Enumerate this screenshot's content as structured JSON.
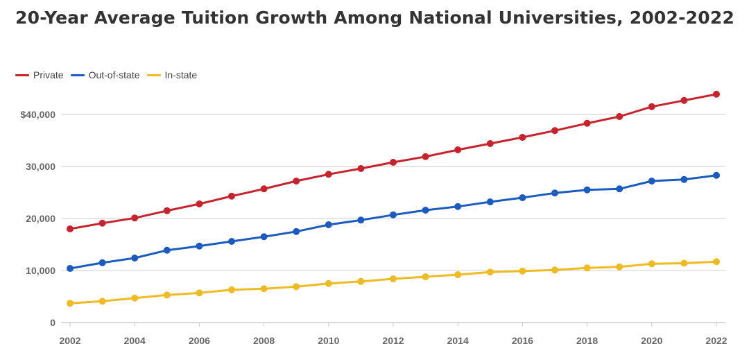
{
  "chart_data": {
    "type": "line",
    "title": "20-Year Average Tuition Growth Among National Universities, 2002-2022",
    "xlabel": "",
    "ylabel": "",
    "x": [
      2002,
      2003,
      2004,
      2005,
      2006,
      2007,
      2008,
      2009,
      2010,
      2011,
      2012,
      2013,
      2014,
      2015,
      2016,
      2017,
      2018,
      2019,
      2020,
      2021,
      2022
    ],
    "x_ticks": [
      "2002",
      "2004",
      "2006",
      "2008",
      "2010",
      "2012",
      "2014",
      "2016",
      "2018",
      "2020",
      "2022"
    ],
    "y_ticks": [
      "0",
      "10,000",
      "20,000",
      "30,000",
      "$40,000"
    ],
    "ylim": [
      0,
      45000
    ],
    "grid": true,
    "legend_position": "top-left",
    "series": [
      {
        "name": "Private",
        "color": "#c8232c",
        "values": [
          18000,
          19100,
          20100,
          21500,
          22800,
          24300,
          25700,
          27200,
          28500,
          29600,
          30800,
          31900,
          33200,
          34400,
          35600,
          36900,
          38300,
          39600,
          41500,
          42700,
          43900
        ]
      },
      {
        "name": "Out-of-state",
        "color": "#1a5bbf",
        "values": [
          10400,
          11500,
          12400,
          13900,
          14700,
          15600,
          16500,
          17500,
          18800,
          19700,
          20700,
          21600,
          22300,
          23200,
          24000,
          24900,
          25500,
          25700,
          27200,
          27500,
          28300
        ]
      },
      {
        "name": "In-state",
        "color": "#f0bb22",
        "values": [
          3700,
          4100,
          4700,
          5300,
          5700,
          6300,
          6500,
          6900,
          7500,
          7900,
          8400,
          8800,
          9200,
          9700,
          9900,
          10100,
          10500,
          10700,
          11300,
          11400,
          11700
        ]
      }
    ]
  }
}
